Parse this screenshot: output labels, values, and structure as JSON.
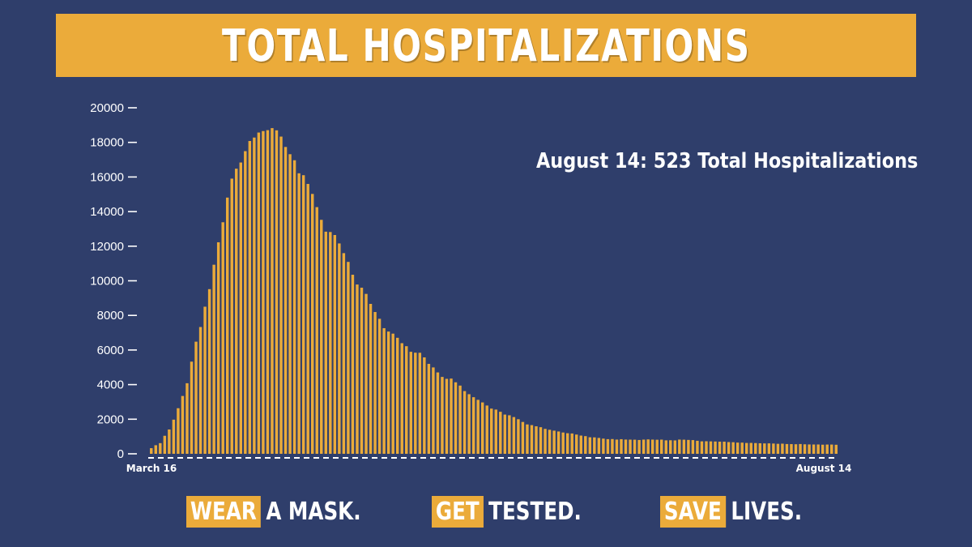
{
  "title": "TOTAL HOSPITALIZATIONS",
  "annotation": "August 14: 523 Total Hospitalizations",
  "colors": {
    "background": "#2f3e6b",
    "accent": "#ebab3a",
    "text": "#ffffff"
  },
  "slogans": [
    {
      "highlight": "WEAR",
      "rest": "A MASK."
    },
    {
      "highlight": "GET",
      "rest": "TESTED."
    },
    {
      "highlight": "SAVE",
      "rest": "LIVES."
    }
  ],
  "chart_data": {
    "type": "bar",
    "title": "TOTAL HOSPITALIZATIONS",
    "xlabel": "",
    "ylabel": "",
    "ylim": [
      0,
      20000
    ],
    "yticks": [
      0,
      2000,
      4000,
      6000,
      8000,
      10000,
      12000,
      14000,
      16000,
      18000,
      20000
    ],
    "x_start_label": "March 16",
    "x_end_label": "August 14",
    "grid": false,
    "values": [
      326,
      496,
      617,
      1042,
      1406,
      1974,
      2635,
      3343,
      4079,
      5327,
      6481,
      7328,
      8503,
      9517,
      10929,
      12226,
      13383,
      14810,
      15905,
      16479,
      16837,
      17493,
      18079,
      18279,
      18569,
      18654,
      18707,
      18825,
      18697,
      18335,
      17735,
      17316,
      16967,
      16213,
      16103,
      15599,
      15021,
      14258,
      13524,
      12839,
      12819,
      12646,
      12159,
      11598,
      11092,
      10350,
      9786,
      9600,
      9243,
      8665,
      8196,
      7804,
      7262,
      7066,
      6946,
      6706,
      6394,
      6220,
      5897,
      5845,
      5840,
      5573,
      5198,
      4993,
      4704,
      4444,
      4333,
      4348,
      4134,
      3943,
      3625,
      3446,
      3272,
      3120,
      2970,
      2791,
      2613,
      2557,
      2429,
      2268,
      2227,
      2124,
      1999,
      1841,
      1699,
      1658,
      1590,
      1538,
      1441,
      1389,
      1339,
      1291,
      1232,
      1190,
      1175,
      1113,
      1054,
      1021,
      956,
      950,
      918,
      878,
      847,
      853,
      822,
      845,
      823,
      819,
      816,
      799,
      821,
      833,
      821,
      813,
      819,
      779,
      784,
      775,
      822,
      816,
      803,
      793,
      754,
      721,
      726,
      719,
      711,
      700,
      701,
      678,
      670,
      648,
      646,
      627,
      630,
      621,
      610,
      601,
      604,
      594,
      578,
      587,
      566,
      561,
      553,
      566,
      550,
      541,
      538,
      539,
      527,
      536,
      535,
      523
    ]
  }
}
